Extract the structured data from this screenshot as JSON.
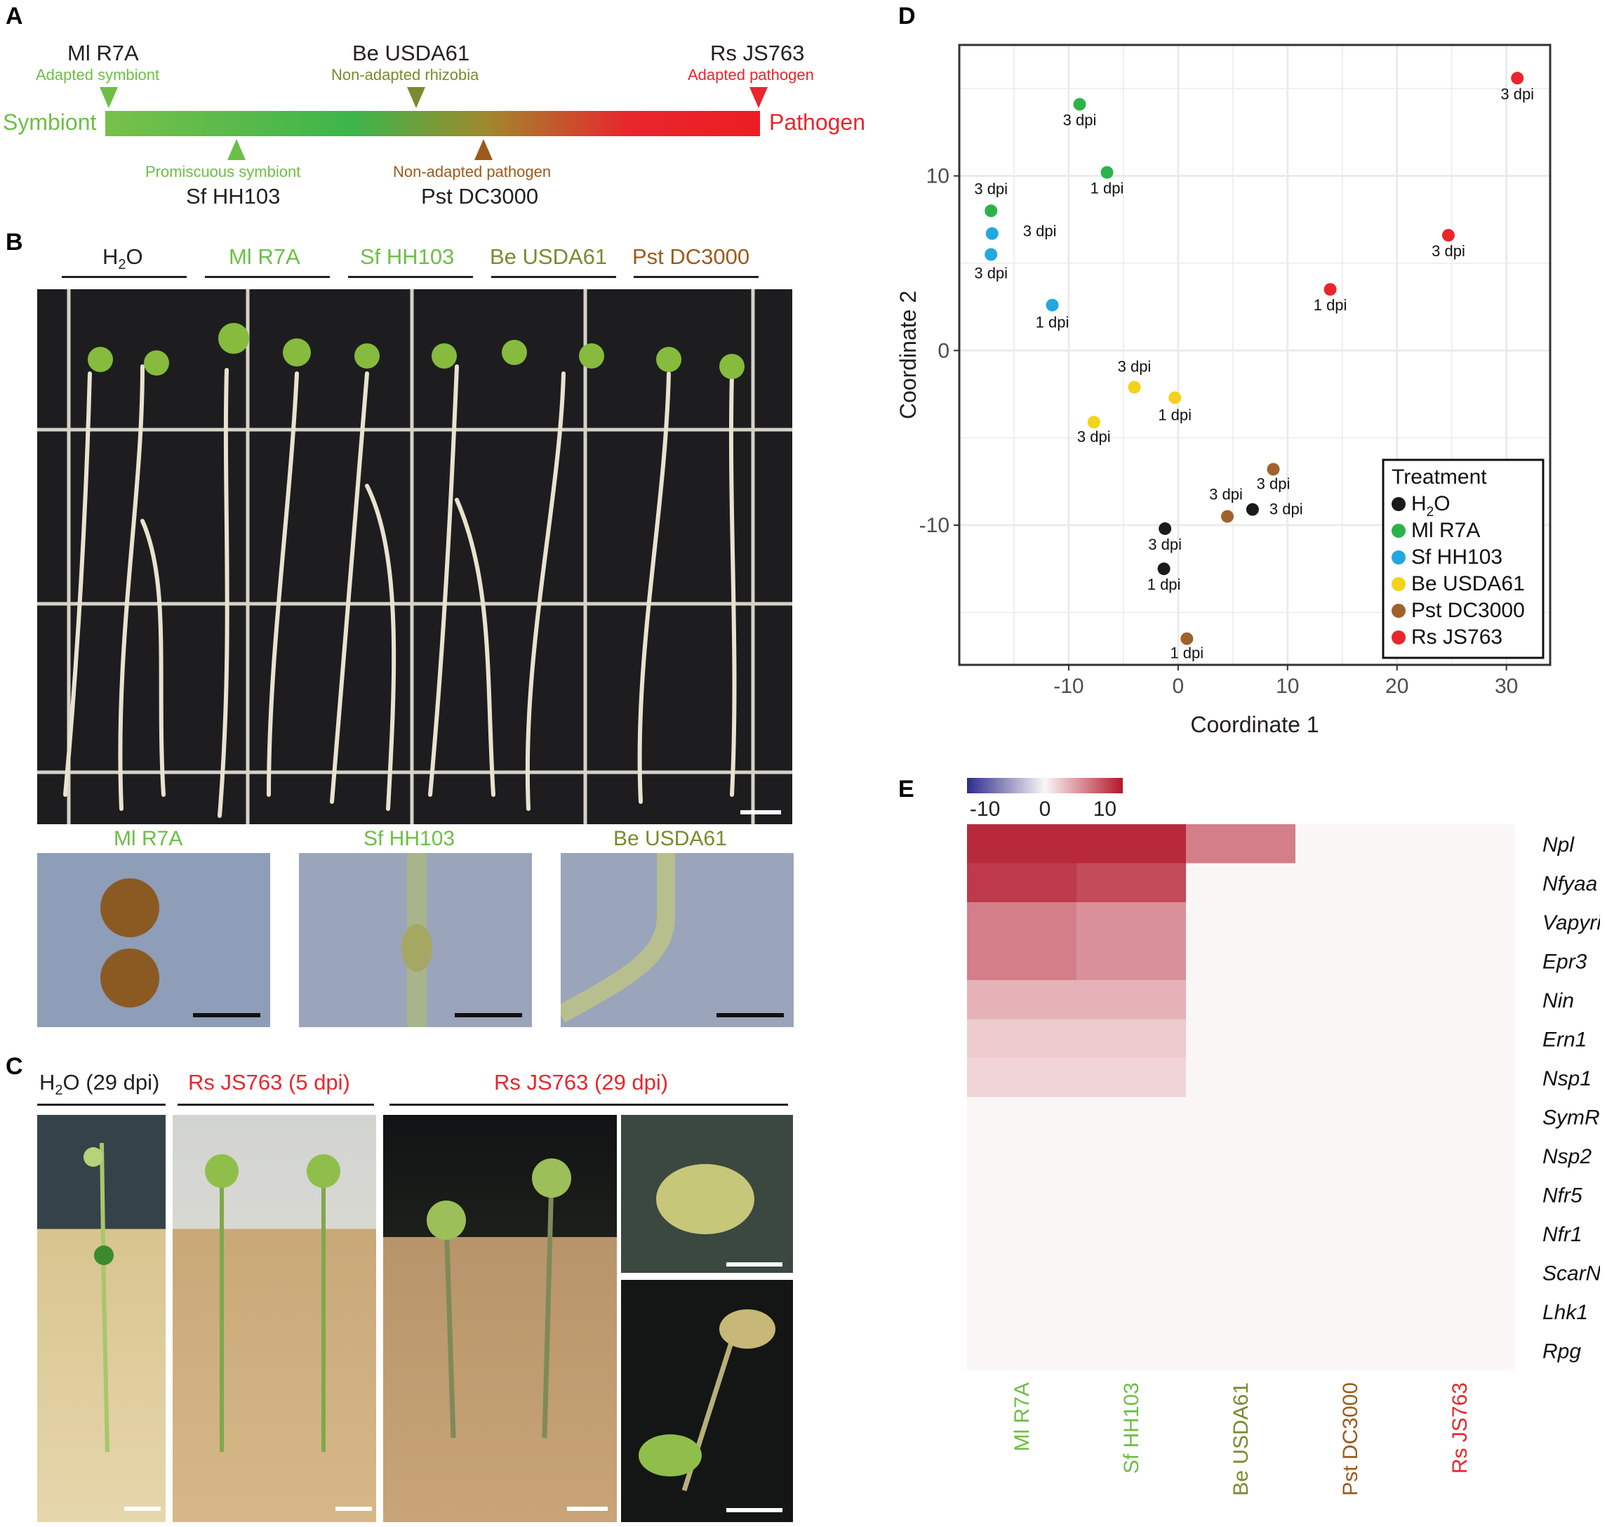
{
  "panels": {
    "a": "A",
    "b": "B",
    "c": "C",
    "d": "D",
    "e": "E"
  },
  "colors": {
    "symbiont_green": "#6cbf45",
    "be_olive": "#7a8a2e",
    "pst_brown": "#9b5a1a",
    "rs_red": "#e8262c",
    "heat_red": "#b2182b",
    "heat_blue": "#2c2c8c"
  },
  "panel_a": {
    "left_end": "Symbiont",
    "right_end": "Pathogen",
    "markers_top": [
      {
        "strain": "Ml R7A",
        "desc": "Adapted symbiont"
      },
      {
        "strain": "Be USDA61",
        "desc": "Non-adapted rhizobia"
      },
      {
        "strain": "Rs JS763",
        "desc": "Adapted pathogen"
      }
    ],
    "markers_bottom": [
      {
        "strain": "Sf HH103",
        "desc": "Promiscuous symbiont"
      },
      {
        "strain": "Pst DC3000",
        "desc": "Non-adapted pathogen"
      }
    ]
  },
  "panel_b": {
    "headers": [
      "H",
      "2",
      "O",
      "Ml R7A",
      "Sf HH103",
      "Be USDA61",
      "Pst DC3000"
    ],
    "insets": [
      "Ml R7A",
      "Sf HH103",
      "Be USDA61"
    ]
  },
  "panel_c": {
    "headers": [
      {
        "pre": "H",
        "sub": "2",
        "post": "O (29 dpi)"
      },
      {
        "pre": "Rs JS763 (5 dpi)"
      },
      {
        "pre": "Rs JS763 (29 dpi)"
      }
    ]
  },
  "chart_data": [
    {
      "type": "scatter",
      "xlabel": "Coordinate 1",
      "ylabel": "Coordinate 2",
      "xlim": [
        -20,
        34
      ],
      "ylim": [
        -18,
        17.5
      ],
      "xticks": [
        -10,
        0,
        10,
        20,
        30
      ],
      "xtick_labels": [
        "-10",
        "0",
        "10",
        "20",
        "30"
      ],
      "yticks": [
        10,
        0,
        -10
      ],
      "ytick_labels": [
        "10",
        "0",
        "-10"
      ],
      "grid": true,
      "legend_title": "Treatment",
      "legend_position": "bottom-right",
      "series": [
        {
          "name": "H2O",
          "color": "#1a1a1a",
          "points": [
            {
              "x": -1.2,
              "y": -10.2,
              "label": "3 dpi"
            },
            {
              "x": -1.3,
              "y": -12.5,
              "label": "1 dpi"
            },
            {
              "x": 6.8,
              "y": -9.1,
              "label": "3 dpi"
            }
          ]
        },
        {
          "name": "Ml R7A",
          "color": "#2bb34a",
          "points": [
            {
              "x": -9.0,
              "y": 14.1,
              "label": "3 dpi"
            },
            {
              "x": -6.5,
              "y": 10.2,
              "label": "1 dpi"
            },
            {
              "x": -17.1,
              "y": 8.0,
              "label": "3 dpi"
            }
          ]
        },
        {
          "name": "Sf HH103",
          "color": "#21a8e0",
          "points": [
            {
              "x": -17.0,
              "y": 6.7,
              "label": "3 dpi"
            },
            {
              "x": -17.1,
              "y": 5.5,
              "label": "3 dpi"
            },
            {
              "x": -11.5,
              "y": 2.6,
              "label": "1 dpi"
            }
          ]
        },
        {
          "name": "Be USDA61",
          "color": "#f3d31a",
          "points": [
            {
              "x": -4.0,
              "y": -2.1,
              "label": "3 dpi"
            },
            {
              "x": -0.3,
              "y": -2.7,
              "label": "1 dpi"
            },
            {
              "x": -7.7,
              "y": -4.1,
              "label": "3 dpi"
            }
          ]
        },
        {
          "name": "Pst DC3000",
          "color": "#a0622a",
          "points": [
            {
              "x": 8.7,
              "y": -6.8,
              "label": "3 dpi"
            },
            {
              "x": 4.5,
              "y": -9.5,
              "label": "3 dpi"
            },
            {
              "x": 0.8,
              "y": -16.5,
              "label": "1 dpi"
            }
          ]
        },
        {
          "name": "Rs JS763",
          "color": "#e8262c",
          "points": [
            {
              "x": 31.0,
              "y": 15.6,
              "label": "3 dpi"
            },
            {
              "x": 24.7,
              "y": 6.6,
              "label": "3 dpi"
            },
            {
              "x": 13.9,
              "y": 3.5,
              "label": "1 dpi"
            }
          ]
        }
      ]
    },
    {
      "type": "heatmap",
      "colorbar_ticks": [
        "-10",
        "0",
        "10"
      ],
      "colorbar_range": [
        -13,
        13
      ],
      "columns": [
        "Ml R7A",
        "Sf HH103",
        "Be USDA61",
        "Pst DC3000",
        "Rs JS763"
      ],
      "column_colors": [
        "#6cbf45",
        "#6cbf45",
        "#7a8a2e",
        "#9b5a1a",
        "#e8262c"
      ],
      "rows": [
        "Npl",
        "Nfyaa",
        "Vapyrin",
        "Epr3",
        "Nin",
        "Ern1",
        "Nsp1",
        "SymRK",
        "Nsp2",
        "Nfr5",
        "Nfr1",
        "ScarN",
        "Lhk1",
        "Rpg"
      ],
      "values": [
        [
          12,
          12,
          7,
          0,
          0
        ],
        [
          11,
          10,
          0,
          0,
          0
        ],
        [
          7,
          6,
          0,
          0,
          0
        ],
        [
          7,
          6,
          0,
          0,
          0
        ],
        [
          4,
          4,
          0,
          0,
          0
        ],
        [
          2.5,
          2.5,
          0,
          0,
          0
        ],
        [
          2,
          2,
          0,
          0,
          0
        ],
        [
          0,
          0,
          0,
          0,
          0
        ],
        [
          0,
          0,
          0,
          0,
          0
        ],
        [
          0,
          0,
          0,
          0,
          0
        ],
        [
          0,
          0,
          0,
          0,
          0
        ],
        [
          0,
          0,
          0,
          0,
          0
        ],
        [
          0,
          0,
          0,
          0,
          0
        ],
        [
          0,
          0,
          0,
          0,
          0
        ]
      ]
    }
  ]
}
